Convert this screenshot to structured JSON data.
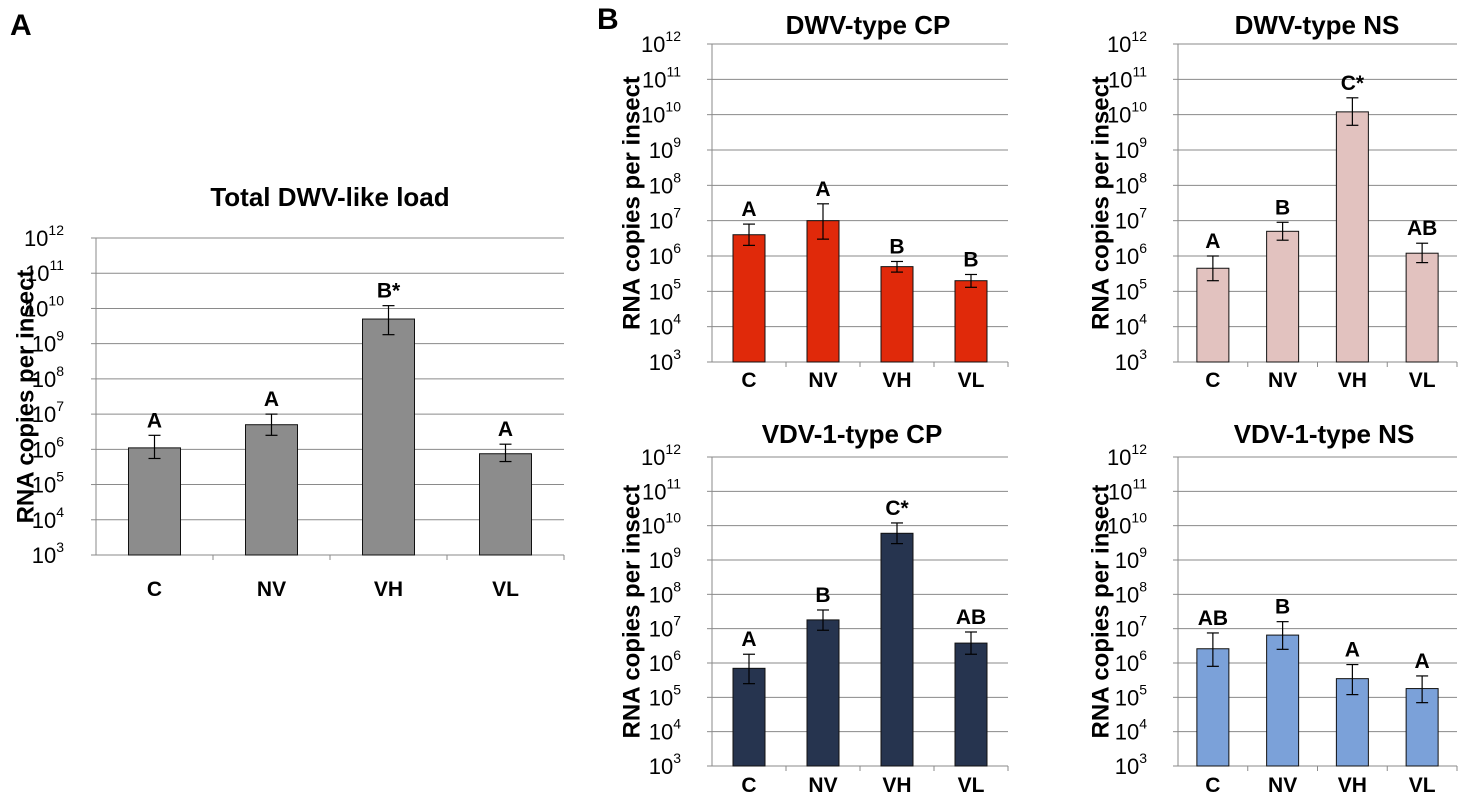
{
  "panel_labels": [
    "A",
    "B"
  ],
  "chart_data": [
    {
      "type": "bar",
      "title": "Total DWV-like load",
      "ylabel": "RNA copies per insect",
      "yscale": "log",
      "ylim": [
        1000,
        1000000000000
      ],
      "ytick_exponents": [
        3,
        4,
        5,
        6,
        7,
        8,
        9,
        10,
        11,
        12
      ],
      "grid": true,
      "categories": [
        "C",
        "NV",
        "VH",
        "VL"
      ],
      "values": [
        1100000,
        5000000,
        5000000000,
        750000
      ],
      "error_low": [
        550000,
        2500000,
        1800000000,
        450000
      ],
      "error_high": [
        2500000,
        10000000,
        12000000000,
        1400000
      ],
      "significance": [
        "A",
        "A",
        "B*",
        "A"
      ],
      "color": "#8c8c8c"
    },
    {
      "type": "bar",
      "title": "DWV-type CP",
      "ylabel": "RNA copies per insect",
      "yscale": "log",
      "ylim": [
        1000,
        1000000000000
      ],
      "ytick_exponents": [
        3,
        4,
        5,
        6,
        7,
        8,
        9,
        10,
        11,
        12
      ],
      "grid": true,
      "categories": [
        "C",
        "NV",
        "VH",
        "VL"
      ],
      "values": [
        4000000,
        10000000,
        500000,
        200000
      ],
      "error_low": [
        2000000,
        3000000,
        350000,
        130000
      ],
      "error_high": [
        8000000,
        30000000,
        700000,
        300000
      ],
      "significance": [
        "A",
        "A",
        "B",
        "B"
      ],
      "color": "#e0290a"
    },
    {
      "type": "bar",
      "title": "DWV-type NS",
      "ylabel": "RNA copies per insect",
      "yscale": "log",
      "ylim": [
        1000,
        1000000000000
      ],
      "ytick_exponents": [
        3,
        4,
        5,
        6,
        7,
        8,
        9,
        10,
        11,
        12
      ],
      "grid": true,
      "categories": [
        "C",
        "NV",
        "VH",
        "VL"
      ],
      "values": [
        450000,
        5000000,
        12000000000,
        1200000
      ],
      "error_low": [
        200000,
        2800000,
        5000000000,
        650000
      ],
      "error_high": [
        1000000,
        9000000,
        30000000000,
        2300000
      ],
      "significance": [
        "A",
        "B",
        "C*",
        "AB"
      ],
      "color": "#e2c2bf"
    },
    {
      "type": "bar",
      "title": "VDV-1-type CP",
      "ylabel": "RNA copies per insect",
      "yscale": "log",
      "ylim": [
        1000,
        1000000000000
      ],
      "ytick_exponents": [
        3,
        4,
        5,
        6,
        7,
        8,
        9,
        10,
        11,
        12
      ],
      "grid": true,
      "categories": [
        "C",
        "NV",
        "VH",
        "VL"
      ],
      "values": [
        700000,
        18000000,
        6000000000,
        3800000
      ],
      "error_low": [
        250000,
        9000000,
        3000000000,
        1800000
      ],
      "error_high": [
        1800000,
        35000000,
        12000000000,
        8000000
      ],
      "significance": [
        "A",
        "B",
        "C*",
        "AB"
      ],
      "color": "#26344f"
    },
    {
      "type": "bar",
      "title": "VDV-1-type NS",
      "ylabel": "RNA copies per insect",
      "yscale": "log",
      "ylim": [
        1000,
        1000000000000
      ],
      "ytick_exponents": [
        3,
        4,
        5,
        6,
        7,
        8,
        9,
        10,
        11,
        12
      ],
      "grid": true,
      "categories": [
        "C",
        "NV",
        "VH",
        "VL"
      ],
      "values": [
        2600000,
        6500000,
        350000,
        180000
      ],
      "error_low": [
        800000,
        2500000,
        120000,
        70000
      ],
      "error_high": [
        7500000,
        16000000,
        900000,
        420000
      ],
      "significance": [
        "AB",
        "B",
        "A",
        "A"
      ],
      "color": "#7ba1d9"
    }
  ]
}
